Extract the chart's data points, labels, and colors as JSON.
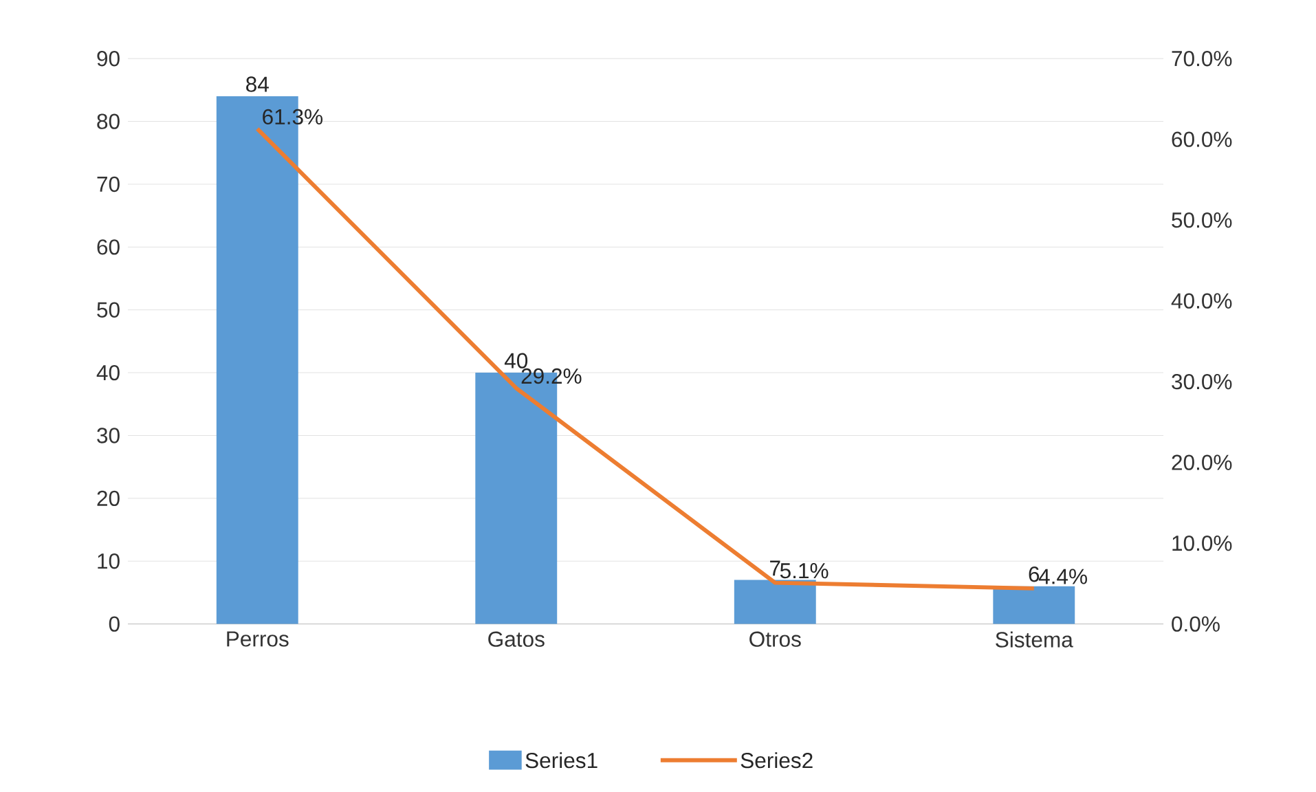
{
  "chart_data": {
    "type": "bar",
    "categories": [
      "Perros",
      "Gatos",
      "Otros",
      "Sistema"
    ],
    "series": [
      {
        "name": "Series1",
        "color": "#5b9bd5",
        "values": [
          84,
          40,
          7,
          6
        ],
        "value_labels": [
          "84",
          "40",
          "7",
          "6"
        ]
      },
      {
        "name": "Series2",
        "type": "line",
        "axis": "y2",
        "color": "#ed7d31",
        "values": [
          61.3,
          29.2,
          5.1,
          4.4
        ],
        "value_labels": [
          "61.3%",
          "29.2%",
          "5.1%",
          "4.4%"
        ]
      }
    ],
    "ylim": [
      0,
      90
    ],
    "yticks": [
      0,
      10,
      20,
      30,
      40,
      50,
      60,
      70,
      80,
      90
    ],
    "y2lim": [
      0,
      70
    ],
    "y2ticks": [
      {
        "value": 0,
        "label": "0.0%"
      },
      {
        "value": 10,
        "label": "10.0%"
      },
      {
        "value": 20,
        "label": "20.0%"
      },
      {
        "value": 30,
        "label": "30.0%"
      },
      {
        "value": 40,
        "label": "40.0%"
      },
      {
        "value": 50,
        "label": "50.0%"
      },
      {
        "value": 60,
        "label": "60.0%"
      },
      {
        "value": 70,
        "label": "70.0%"
      }
    ],
    "grid": "y",
    "legend": "bottom",
    "marker": "none",
    "line_style": "solid"
  }
}
